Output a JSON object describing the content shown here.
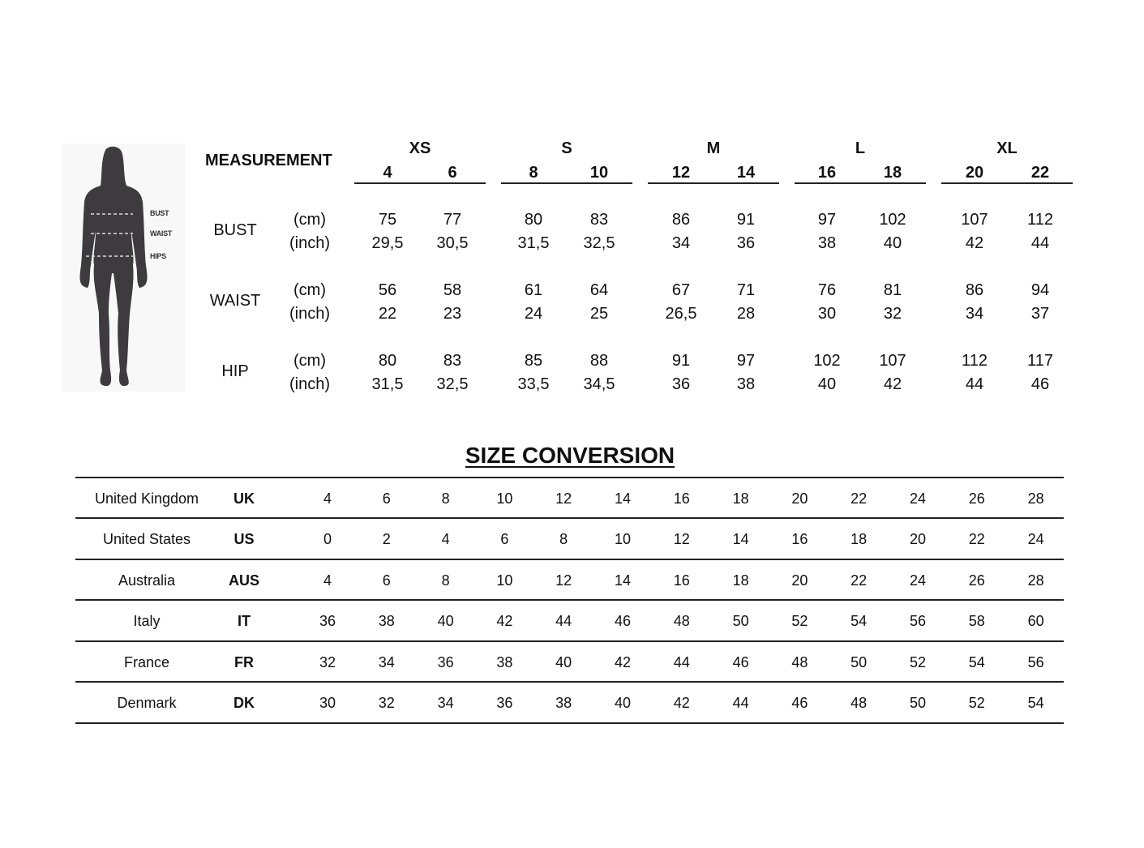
{
  "figure": {
    "labels": [
      "BUST",
      "WAIST",
      "HIPS"
    ]
  },
  "measurement": {
    "header": "MEASUREMENT",
    "groups": [
      {
        "label": "XS",
        "sizes": [
          "4",
          "6"
        ]
      },
      {
        "label": "S",
        "sizes": [
          "8",
          "10"
        ]
      },
      {
        "label": "M",
        "sizes": [
          "12",
          "14"
        ]
      },
      {
        "label": "L",
        "sizes": [
          "16",
          "18"
        ]
      },
      {
        "label": "XL",
        "sizes": [
          "20",
          "22"
        ]
      }
    ],
    "rows": [
      {
        "label": "BUST",
        "units": [
          {
            "unit": "(cm)",
            "values": [
              "75",
              "77",
              "80",
              "83",
              "86",
              "91",
              "97",
              "102",
              "107",
              "112"
            ]
          },
          {
            "unit": "(inch)",
            "values": [
              "29,5",
              "30,5",
              "31,5",
              "32,5",
              "34",
              "36",
              "38",
              "40",
              "42",
              "44"
            ]
          }
        ]
      },
      {
        "label": "WAIST",
        "units": [
          {
            "unit": "(cm)",
            "values": [
              "56",
              "58",
              "61",
              "64",
              "67",
              "71",
              "76",
              "81",
              "86",
              "94"
            ]
          },
          {
            "unit": "(inch)",
            "values": [
              "22",
              "23",
              "24",
              "25",
              "26,5",
              "28",
              "30",
              "32",
              "34",
              "37"
            ]
          }
        ]
      },
      {
        "label": "HIP",
        "units": [
          {
            "unit": "(cm)",
            "values": [
              "80",
              "83",
              "85",
              "88",
              "91",
              "97",
              "102",
              "107",
              "112",
              "117"
            ]
          },
          {
            "unit": "(inch)",
            "values": [
              "31,5",
              "32,5",
              "33,5",
              "34,5",
              "36",
              "38",
              "40",
              "42",
              "44",
              "46"
            ]
          }
        ]
      }
    ]
  },
  "conversion": {
    "title": "SIZE CONVERSION",
    "rows": [
      {
        "country": "United Kingdom",
        "code": "UK",
        "values": [
          "4",
          "6",
          "8",
          "10",
          "12",
          "14",
          "16",
          "18",
          "20",
          "22",
          "24",
          "26",
          "28"
        ]
      },
      {
        "country": "United States",
        "code": "US",
        "values": [
          "0",
          "2",
          "4",
          "6",
          "8",
          "10",
          "12",
          "14",
          "16",
          "18",
          "20",
          "22",
          "24"
        ]
      },
      {
        "country": "Australia",
        "code": "AUS",
        "values": [
          "4",
          "6",
          "8",
          "10",
          "12",
          "14",
          "16",
          "18",
          "20",
          "22",
          "24",
          "26",
          "28"
        ]
      },
      {
        "country": "Italy",
        "code": "IT",
        "values": [
          "36",
          "38",
          "40",
          "42",
          "44",
          "46",
          "48",
          "50",
          "52",
          "54",
          "56",
          "58",
          "60"
        ]
      },
      {
        "country": "France",
        "code": "FR",
        "values": [
          "32",
          "34",
          "36",
          "38",
          "40",
          "42",
          "44",
          "46",
          "48",
          "50",
          "52",
          "54",
          "56"
        ]
      },
      {
        "country": "Denmark",
        "code": "DK",
        "values": [
          "30",
          "32",
          "34",
          "36",
          "38",
          "40",
          "42",
          "44",
          "46",
          "48",
          "50",
          "52",
          "54"
        ]
      }
    ]
  }
}
